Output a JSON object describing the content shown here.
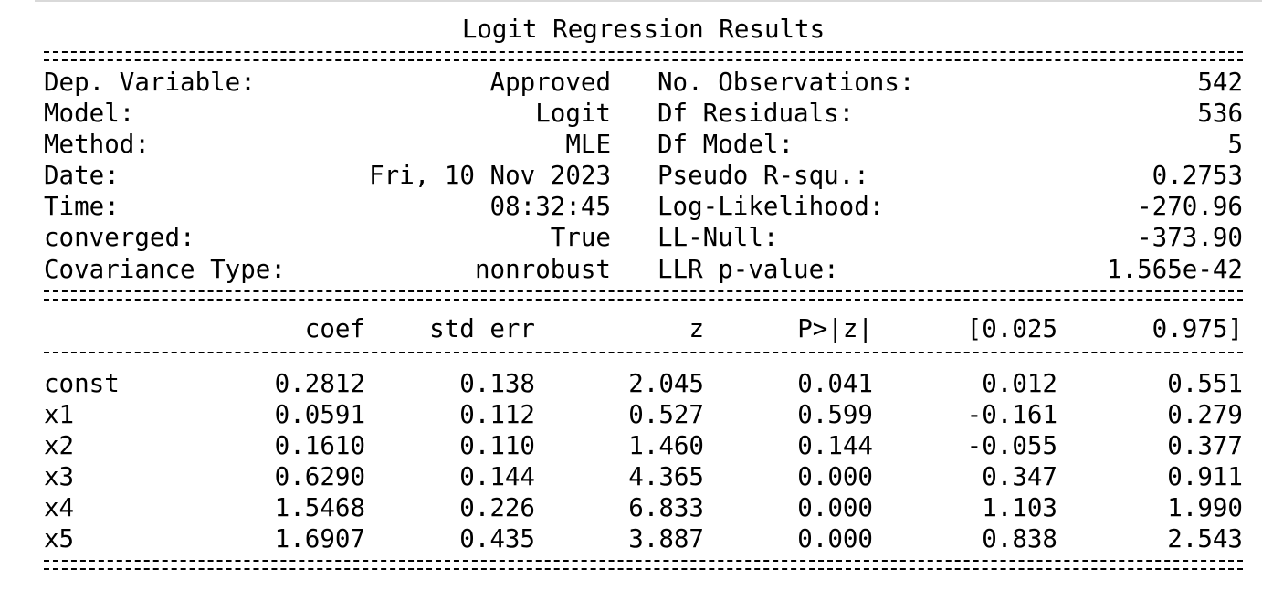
{
  "title": "Logit Regression Results",
  "summary_rows": [
    {
      "label_left": "Dep. Variable:",
      "value_left": "Approved",
      "label_right": "No. Observations:",
      "value_right": "542"
    },
    {
      "label_left": "Model:",
      "value_left": "Logit",
      "label_right": "Df Residuals:",
      "value_right": "536"
    },
    {
      "label_left": "Method:",
      "value_left": "MLE",
      "label_right": "Df Model:",
      "value_right": "5"
    },
    {
      "label_left": "Date:",
      "value_left": "Fri, 10 Nov 2023",
      "label_right": "Pseudo R-squ.:",
      "value_right": "0.2753"
    },
    {
      "label_left": "Time:",
      "value_left": "08:32:45",
      "label_right": "Log-Likelihood:",
      "value_right": "-270.96"
    },
    {
      "label_left": "converged:",
      "value_left": "True",
      "label_right": "LL-Null:",
      "value_right": "-373.90"
    },
    {
      "label_left": "Covariance Type:",
      "value_left": "nonrobust",
      "label_right": "LLR p-value:",
      "value_right": "1.565e-42"
    }
  ],
  "coef_table": {
    "headers": [
      "coef",
      "std err",
      "z",
      "P>|z|",
      "[0.025",
      "0.975]"
    ],
    "rows": [
      {
        "name": "const",
        "values": [
          "0.2812",
          "0.138",
          "2.045",
          "0.041",
          "0.012",
          "0.551"
        ]
      },
      {
        "name": "x1",
        "values": [
          "0.0591",
          "0.112",
          "0.527",
          "0.599",
          "-0.161",
          "0.279"
        ]
      },
      {
        "name": "x2",
        "values": [
          "0.1610",
          "0.110",
          "1.460",
          "0.144",
          "-0.055",
          "0.377"
        ]
      },
      {
        "name": "x3",
        "values": [
          "0.6290",
          "0.144",
          "4.365",
          "0.000",
          "0.347",
          "0.911"
        ]
      },
      {
        "name": "x4",
        "values": [
          "1.5468",
          "0.226",
          "6.833",
          "0.000",
          "1.103",
          "1.990"
        ]
      },
      {
        "name": "x5",
        "values": [
          "1.6907",
          "0.435",
          "3.887",
          "0.000",
          "0.838",
          "2.543"
        ]
      }
    ]
  }
}
